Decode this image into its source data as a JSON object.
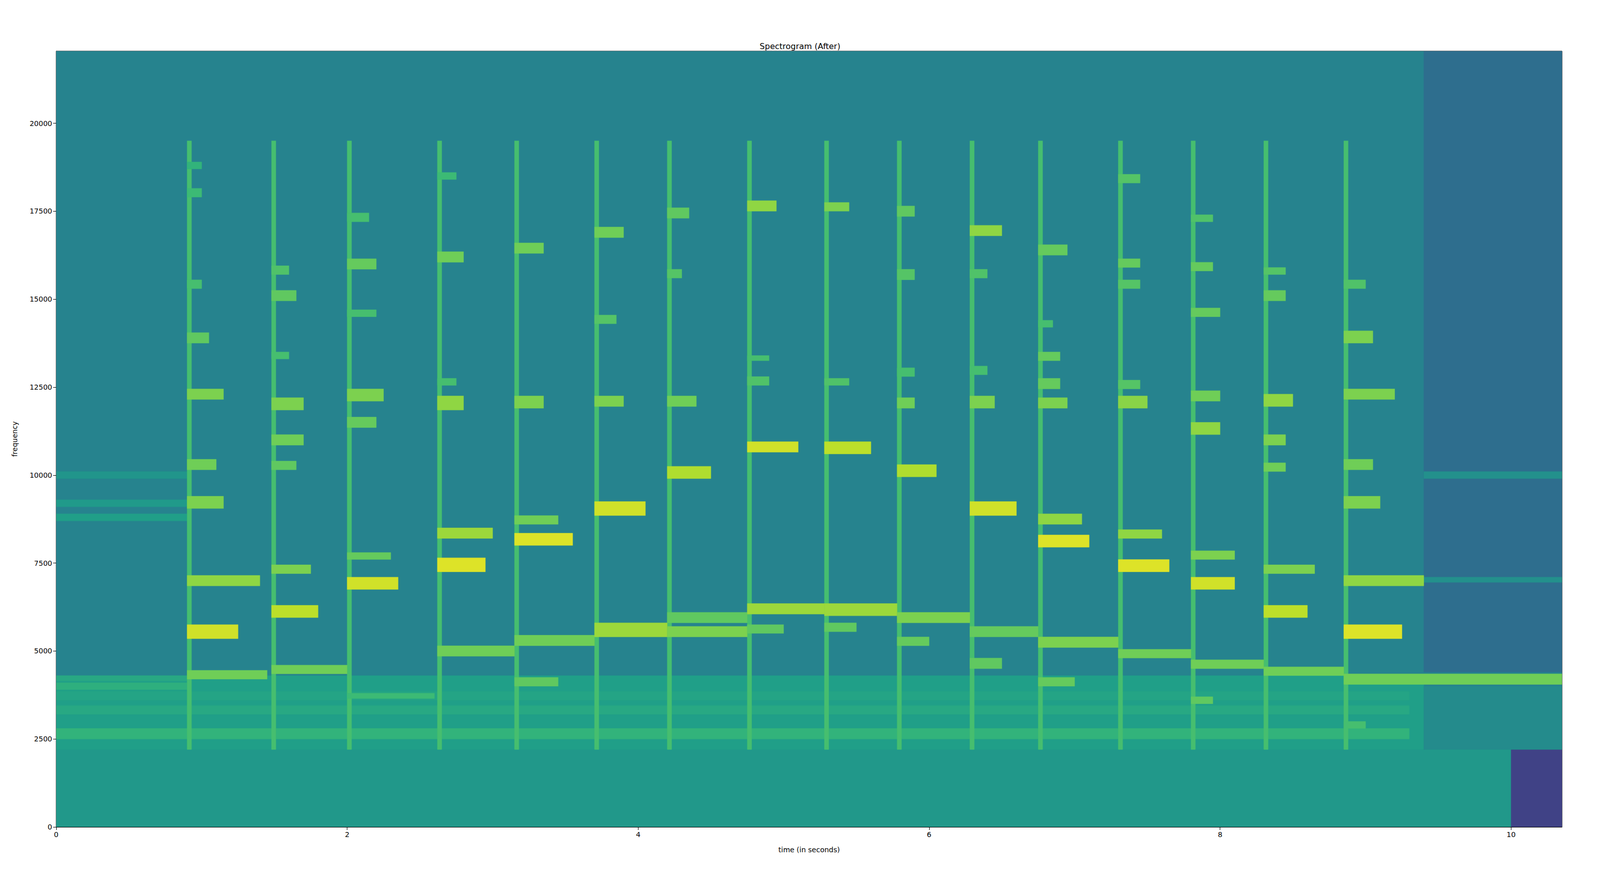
{
  "chart_data": {
    "type": "heatmap",
    "title": "Spectrogram (After)",
    "x_label": "time (in seconds)",
    "y_label": "frequency",
    "xlim": [
      0,
      10.35
    ],
    "xticks": [
      0,
      2,
      4,
      6,
      8,
      10
    ],
    "ylim": [
      0,
      22050
    ],
    "yticks": [
      0,
      2500,
      5000,
      7500,
      10000,
      12500,
      15000,
      17500,
      20000
    ],
    "grid": false,
    "value_range": [
      0,
      10
    ],
    "cells": [
      [
        0,
        10.35,
        2200,
        22050,
        4.5
      ],
      [
        0,
        10.35,
        0,
        2200,
        5.3
      ],
      [
        9.4,
        10.35,
        4400,
        22050,
        3.6
      ],
      [
        10.0,
        10.35,
        0,
        2200,
        2
      ],
      [
        0,
        9.4,
        2200,
        4300,
        5.6
      ],
      [
        9.4,
        10.35,
        2200,
        4000,
        4.8
      ],
      [
        0,
        9.3,
        2500,
        2800,
        6.5
      ],
      [
        0,
        9.3,
        3200,
        3450,
        6
      ],
      [
        0,
        9.3,
        3600,
        3850,
        5.8
      ],
      [
        0,
        0.9,
        3900,
        4100,
        6.3
      ],
      [
        0,
        0.9,
        4150,
        4300,
        6
      ],
      [
        0,
        0.9,
        8700,
        8900,
        5.6
      ],
      [
        0,
        0.9,
        9100,
        9300,
        5.4
      ],
      [
        0,
        0.9,
        9900,
        10100,
        5.2
      ],
      [
        9.4,
        10.35,
        9900,
        10100,
        5
      ],
      [
        9.4,
        10.35,
        6950,
        7100,
        5
      ],
      [
        0.9,
        0.93,
        2200,
        19500,
        7
      ],
      [
        1.48,
        1.51,
        2200,
        19500,
        7
      ],
      [
        2.0,
        2.03,
        2200,
        19500,
        7
      ],
      [
        2.62,
        2.65,
        2200,
        19500,
        7
      ],
      [
        3.15,
        3.18,
        2200,
        19500,
        7
      ],
      [
        3.7,
        3.73,
        2200,
        19500,
        7
      ],
      [
        4.2,
        4.23,
        2200,
        19500,
        7
      ],
      [
        4.75,
        4.78,
        2200,
        19500,
        7
      ],
      [
        5.28,
        5.31,
        2200,
        19500,
        7
      ],
      [
        5.78,
        5.81,
        2200,
        19500,
        7
      ],
      [
        6.28,
        6.31,
        2200,
        19500,
        7
      ],
      [
        6.75,
        6.78,
        2200,
        19500,
        7
      ],
      [
        7.3,
        7.33,
        2200,
        19500,
        7
      ],
      [
        7.8,
        7.83,
        2200,
        19500,
        7
      ],
      [
        8.3,
        8.33,
        2200,
        19500,
        7
      ],
      [
        8.85,
        8.88,
        2200,
        19500,
        7
      ],
      [
        0.9,
        1.45,
        4200,
        4450,
        7.8
      ],
      [
        0.9,
        1.25,
        5350,
        5750,
        9.3
      ],
      [
        0.9,
        1.4,
        6850,
        7150,
        8.3
      ],
      [
        0.9,
        1.15,
        9050,
        9400,
        8
      ],
      [
        0.9,
        1.1,
        10150,
        10450,
        7.8
      ],
      [
        0.9,
        1.15,
        12150,
        12450,
        8
      ],
      [
        0.9,
        1.05,
        13750,
        14050,
        7.5
      ],
      [
        0.9,
        1.0,
        15300,
        15550,
        7
      ],
      [
        0.9,
        1.0,
        17900,
        18150,
        6.8
      ],
      [
        0.9,
        1.0,
        18700,
        18900,
        6.5
      ],
      [
        1.48,
        2.0,
        4350,
        4600,
        7.8
      ],
      [
        1.48,
        1.8,
        5950,
        6300,
        9
      ],
      [
        1.48,
        1.75,
        7200,
        7450,
        8
      ],
      [
        1.48,
        1.65,
        10150,
        10400,
        7.5
      ],
      [
        1.48,
        1.7,
        10850,
        11150,
        7.8
      ],
      [
        1.48,
        1.7,
        11850,
        12200,
        8
      ],
      [
        1.48,
        1.6,
        13300,
        13500,
        7
      ],
      [
        1.48,
        1.65,
        14950,
        15250,
        7.5
      ],
      [
        1.48,
        1.6,
        15700,
        15950,
        7.2
      ],
      [
        2.0,
        2.6,
        3650,
        3800,
        6.8
      ],
      [
        2.0,
        2.35,
        6750,
        7100,
        9.3
      ],
      [
        2.0,
        2.3,
        7600,
        7800,
        7.6
      ],
      [
        2.0,
        2.2,
        11350,
        11650,
        7.6
      ],
      [
        2.0,
        2.25,
        12100,
        12450,
        8
      ],
      [
        2.0,
        2.2,
        14500,
        14700,
        7
      ],
      [
        2.0,
        2.2,
        15850,
        16150,
        7.6
      ],
      [
        2.0,
        2.15,
        17200,
        17450,
        7
      ],
      [
        2.62,
        3.15,
        4850,
        5150,
        7.8
      ],
      [
        2.62,
        2.95,
        7250,
        7650,
        9.5
      ],
      [
        2.62,
        3.0,
        8200,
        8500,
        8.5
      ],
      [
        2.62,
        2.8,
        11850,
        12250,
        8.3
      ],
      [
        2.62,
        2.75,
        12550,
        12750,
        7
      ],
      [
        2.62,
        2.8,
        16050,
        16350,
        7.8
      ],
      [
        2.62,
        2.75,
        18400,
        18600,
        6.8
      ],
      [
        3.15,
        3.45,
        4000,
        4250,
        7.5
      ],
      [
        3.15,
        3.7,
        5150,
        5450,
        7.8
      ],
      [
        3.15,
        3.55,
        8000,
        8350,
        9.5
      ],
      [
        3.15,
        3.45,
        8600,
        8850,
        7.8
      ],
      [
        3.15,
        3.35,
        11900,
        12250,
        8
      ],
      [
        3.15,
        3.35,
        16300,
        16600,
        7.8
      ],
      [
        3.7,
        4.2,
        5400,
        5800,
        8.5
      ],
      [
        3.7,
        4.05,
        8850,
        9250,
        9.3
      ],
      [
        3.7,
        3.9,
        11950,
        12250,
        8
      ],
      [
        3.7,
        3.85,
        14300,
        14550,
        7.3
      ],
      [
        3.7,
        3.9,
        16750,
        17050,
        7.8
      ],
      [
        4.2,
        4.75,
        5400,
        5700,
        8
      ],
      [
        4.2,
        4.75,
        5800,
        6100,
        7.5
      ],
      [
        4.2,
        4.5,
        9900,
        10250,
        8.8
      ],
      [
        4.2,
        4.4,
        11950,
        12250,
        7.8
      ],
      [
        4.2,
        4.3,
        15600,
        15850,
        7.3
      ],
      [
        4.2,
        4.35,
        17300,
        17600,
        7.5
      ],
      [
        4.75,
        5.28,
        6050,
        6350,
        8.5
      ],
      [
        4.75,
        5.0,
        5500,
        5750,
        7.5
      ],
      [
        4.75,
        5.1,
        10650,
        10950,
        9.3
      ],
      [
        4.75,
        4.9,
        12550,
        12800,
        7.2
      ],
      [
        4.75,
        4.9,
        13250,
        13400,
        7
      ],
      [
        4.75,
        4.95,
        17500,
        17800,
        8.3
      ],
      [
        5.28,
        5.78,
        6000,
        6350,
        8.5
      ],
      [
        5.28,
        5.5,
        5550,
        5800,
        7.5
      ],
      [
        5.28,
        5.6,
        10600,
        10950,
        9
      ],
      [
        5.28,
        5.45,
        12550,
        12750,
        7.2
      ],
      [
        5.28,
        5.45,
        17500,
        17750,
        8
      ],
      [
        5.78,
        6.28,
        5800,
        6100,
        8
      ],
      [
        5.78,
        6.0,
        5150,
        5400,
        7.6
      ],
      [
        5.78,
        6.05,
        9950,
        10300,
        8.8
      ],
      [
        5.78,
        5.9,
        11900,
        12200,
        7.8
      ],
      [
        5.78,
        5.9,
        12800,
        13050,
        7
      ],
      [
        5.78,
        5.9,
        15550,
        15850,
        7.3
      ],
      [
        5.78,
        5.9,
        17350,
        17650,
        7.5
      ],
      [
        6.28,
        6.75,
        5400,
        5700,
        7.6
      ],
      [
        6.28,
        6.5,
        4500,
        4800,
        7.5
      ],
      [
        6.28,
        6.6,
        8850,
        9250,
        9.3
      ],
      [
        6.28,
        6.45,
        11900,
        12250,
        8
      ],
      [
        6.28,
        6.4,
        12850,
        13100,
        7
      ],
      [
        6.28,
        6.4,
        15600,
        15850,
        7.2
      ],
      [
        6.28,
        6.5,
        16800,
        17100,
        8.3
      ],
      [
        6.75,
        7.3,
        5100,
        5400,
        8
      ],
      [
        6.75,
        7.0,
        4000,
        4250,
        7.6
      ],
      [
        6.75,
        7.1,
        7950,
        8300,
        9.5
      ],
      [
        6.75,
        7.05,
        8600,
        8900,
        8.3
      ],
      [
        6.75,
        6.95,
        11900,
        12200,
        8
      ],
      [
        6.75,
        6.9,
        12450,
        12750,
        7.6
      ],
      [
        6.75,
        6.9,
        13250,
        13500,
        7.6
      ],
      [
        6.75,
        6.85,
        14200,
        14400,
        7
      ],
      [
        6.75,
        6.95,
        16250,
        16550,
        7.6
      ],
      [
        7.3,
        7.8,
        4800,
        5050,
        7.8
      ],
      [
        7.3,
        7.65,
        7250,
        7600,
        9.5
      ],
      [
        7.3,
        7.6,
        8200,
        8450,
        8.3
      ],
      [
        7.3,
        7.5,
        11900,
        12250,
        8.2
      ],
      [
        7.3,
        7.45,
        12450,
        12700,
        7.3
      ],
      [
        7.3,
        7.45,
        15300,
        15550,
        7.3
      ],
      [
        7.3,
        7.45,
        15900,
        16150,
        7.6
      ],
      [
        7.3,
        7.45,
        18300,
        18550,
        7.3
      ],
      [
        7.8,
        8.3,
        4500,
        4750,
        7.8
      ],
      [
        7.8,
        7.95,
        3500,
        3700,
        7.5
      ],
      [
        7.8,
        8.1,
        6750,
        7100,
        9.3
      ],
      [
        7.8,
        8.1,
        7600,
        7850,
        8
      ],
      [
        7.8,
        8.0,
        11150,
        11500,
        8.3
      ],
      [
        7.8,
        8.0,
        12100,
        12400,
        7.8
      ],
      [
        7.8,
        8.0,
        14500,
        14750,
        7.6
      ],
      [
        7.8,
        7.95,
        15800,
        16050,
        7.6
      ],
      [
        7.8,
        7.95,
        17200,
        17400,
        7.2
      ],
      [
        8.3,
        8.85,
        4300,
        4550,
        7.8
      ],
      [
        8.3,
        8.6,
        5950,
        6300,
        9
      ],
      [
        8.3,
        8.65,
        7200,
        7450,
        8
      ],
      [
        8.3,
        8.45,
        10100,
        10350,
        7.8
      ],
      [
        8.3,
        8.45,
        10850,
        11150,
        8
      ],
      [
        8.3,
        8.5,
        11950,
        12300,
        8.3
      ],
      [
        8.3,
        8.45,
        14950,
        15250,
        7.6
      ],
      [
        8.3,
        8.45,
        15700,
        15900,
        7.3
      ],
      [
        8.85,
        10.35,
        4050,
        4350,
        7.8
      ],
      [
        8.85,
        9.0,
        2800,
        3000,
        7
      ],
      [
        8.85,
        9.25,
        5350,
        5750,
        9.5
      ],
      [
        8.85,
        9.4,
        6850,
        7150,
        8.3
      ],
      [
        8.85,
        9.1,
        9050,
        9400,
        8
      ],
      [
        8.85,
        9.05,
        10150,
        10450,
        7.8
      ],
      [
        8.85,
        9.2,
        12150,
        12450,
        8
      ],
      [
        8.85,
        9.05,
        13750,
        14100,
        8
      ],
      [
        8.85,
        9.0,
        15300,
        15550,
        7.2
      ]
    ]
  }
}
